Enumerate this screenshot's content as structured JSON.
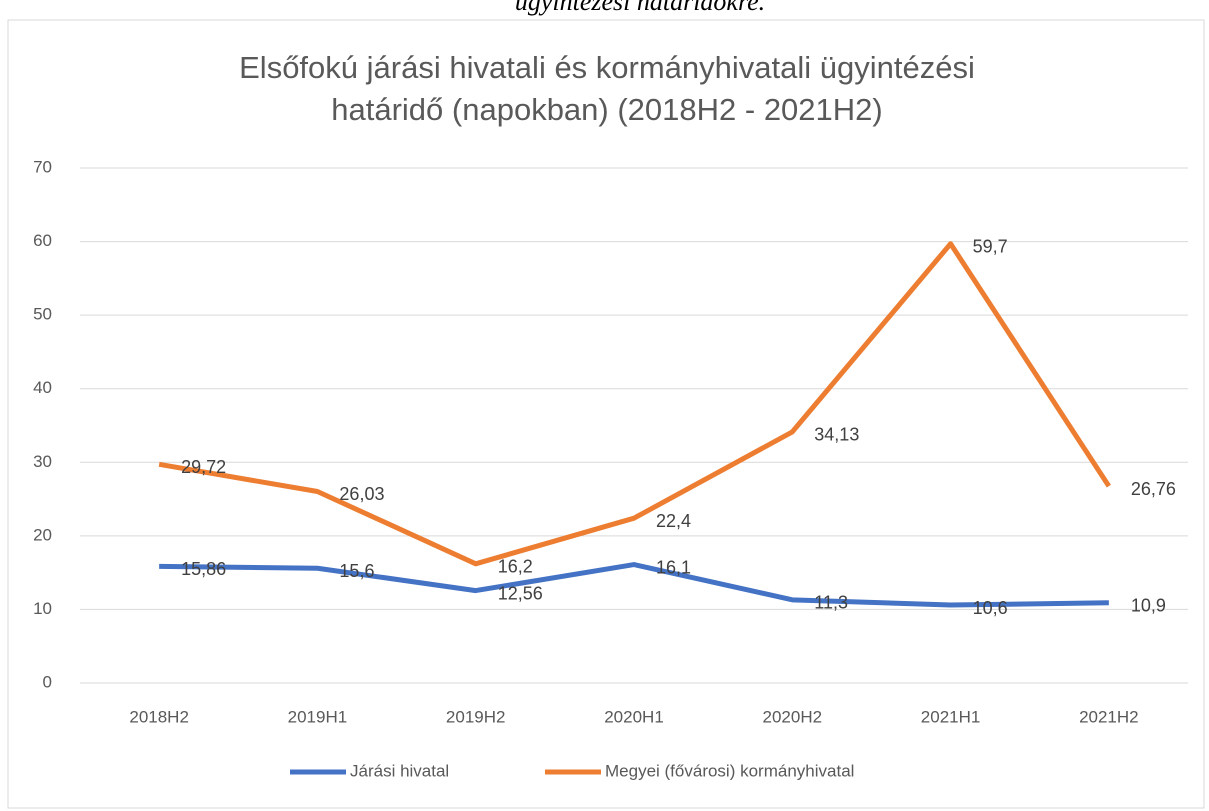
{
  "caption": "ügyintézési határidőkre.",
  "chart_data": {
    "type": "line",
    "title": [
      "Elsőfokú járási hivatali és kormányhivatali ügyintézési",
      "határidő (napokban) (2018H2 - 2021H2)"
    ],
    "categories": [
      "2018H2",
      "2019H1",
      "2019H2",
      "2020H1",
      "2020H2",
      "2021H1",
      "2021H2"
    ],
    "series": [
      {
        "name": "Járási hivatal",
        "color": "#4472c4",
        "values": [
          15.86,
          15.6,
          12.56,
          16.1,
          11.3,
          10.6,
          10.9
        ],
        "value_labels": [
          "15,86",
          "15,6",
          "12,56",
          "16,1",
          "11,3",
          "10,6",
          "10,9"
        ]
      },
      {
        "name": "Megyei (fővárosi) kormányhivatal",
        "color": "#ed7d31",
        "values": [
          29.72,
          26.03,
          16.2,
          22.4,
          34.13,
          59.7,
          26.76
        ],
        "value_labels": [
          "29,72",
          "26,03",
          "16,2",
          "22,4",
          "34,13",
          "59,7",
          "26,76"
        ]
      }
    ],
    "ylim": [
      0,
      70
    ],
    "yticks": [
      0,
      10,
      20,
      30,
      40,
      50,
      60,
      70
    ],
    "grid": true,
    "legend": "bottom"
  }
}
